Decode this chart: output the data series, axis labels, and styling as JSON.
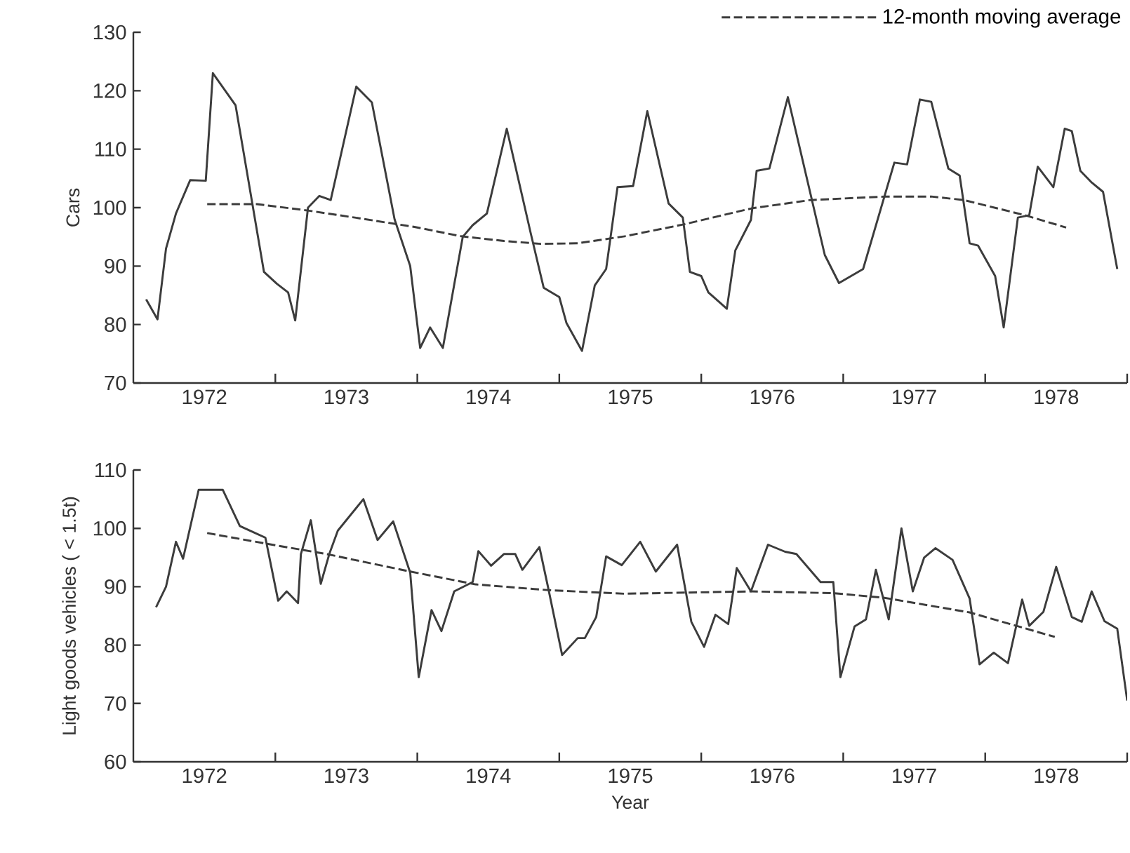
{
  "chart_data": [
    {
      "type": "line",
      "ylabel": "Cars",
      "xlim": [
        1972,
        1979
      ],
      "ylim": [
        70,
        130
      ],
      "xticks": [
        {
          "value": 1972.5,
          "label": "1972"
        },
        {
          "value": 1973,
          "label": null
        },
        {
          "value": 1973.5,
          "label": "1973"
        },
        {
          "value": 1974,
          "label": null
        },
        {
          "value": 1974.5,
          "label": "1974"
        },
        {
          "value": 1975,
          "label": null
        },
        {
          "value": 1975.5,
          "label": "1975"
        },
        {
          "value": 1976,
          "label": null
        },
        {
          "value": 1976.5,
          "label": "1976"
        },
        {
          "value": 1977,
          "label": null
        },
        {
          "value": 1977.5,
          "label": "1977"
        },
        {
          "value": 1978,
          "label": null
        },
        {
          "value": 1978.5,
          "label": "1978"
        },
        {
          "value": 1979,
          "label": null
        }
      ],
      "yticks": [
        70,
        80,
        90,
        100,
        110,
        120,
        130
      ],
      "legend": "top right",
      "marker": "none",
      "series": [
        {
          "color": "#3c3c3c",
          "line_style": "solid",
          "x": [
            1972.09,
            1972.17,
            1972.23,
            1972.3,
            1972.4,
            1972.51,
            1972.56,
            1972.72,
            1972.92,
            1973.01,
            1973.09,
            1973.14,
            1973.23,
            1973.31,
            1973.39,
            1973.57,
            1973.68,
            1973.84,
            1973.95,
            1974.02,
            1974.09,
            1974.18,
            1974.32,
            1974.39,
            1974.49,
            1974.63,
            1974.8,
            1974.89,
            1975.0,
            1975.05,
            1975.16,
            1975.25,
            1975.33,
            1975.41,
            1975.52,
            1975.62,
            1975.77,
            1975.87,
            1975.92,
            1976.0,
            1976.05,
            1976.18,
            1976.24,
            1976.35,
            1976.39,
            1976.48,
            1976.61,
            1976.87,
            1976.97,
            1977.14,
            1977.36,
            1977.45,
            1977.54,
            1977.62,
            1977.74,
            1977.82,
            1977.89,
            1977.95,
            1978.07,
            1978.13,
            1978.23,
            1978.31,
            1978.37,
            1978.48,
            1978.56,
            1978.61,
            1978.67,
            1978.75,
            1978.83,
            1978.93
          ],
          "values": [
            84.3,
            80.9,
            93,
            99,
            104.7,
            104.6,
            123,
            117.5,
            89,
            87,
            85.5,
            80.7,
            100,
            102,
            101.3,
            120.7,
            118,
            98,
            90,
            76,
            79.5,
            76,
            95,
            97,
            99,
            113.5,
            95.5,
            86.3,
            84.7,
            80.3,
            75.5,
            86.7,
            89.5,
            103.5,
            103.7,
            116.5,
            100.7,
            98.3,
            89,
            88.3,
            85.5,
            82.7,
            92.7,
            97.9,
            106.3,
            106.7,
            118.9,
            91.9,
            87.1,
            89.5,
            107.7,
            107.4,
            118.5,
            118.1,
            106.7,
            105.5,
            93.9,
            93.5,
            88.3,
            79.5,
            98.3,
            98.7,
            107,
            103.5,
            113.5,
            113.1,
            106.3,
            104.3,
            102.7,
            89.5
          ]
        },
        {
          "name": "12-month moving average",
          "color": "#3c3c3c",
          "line_style": "dashed",
          "x": [
            1972.52,
            1972.87,
            1973.23,
            1973.56,
            1973.98,
            1974.31,
            1974.61,
            1974.87,
            1975.13,
            1975.46,
            1975.87,
            1976.36,
            1976.77,
            1977.3,
            1977.62,
            1977.85,
            1978.28,
            1978.57
          ],
          "values": [
            100.6,
            100.6,
            99.5,
            98.3,
            96.7,
            95.1,
            94.3,
            93.8,
            93.9,
            95.1,
            97.1,
            99.9,
            101.3,
            101.9,
            101.9,
            101.3,
            98.7,
            96.6
          ]
        }
      ]
    },
    {
      "type": "line",
      "ylabel": "Light goods vehicles ( < 1.5t)",
      "xlabel": "Year",
      "xlim": [
        1972,
        1979
      ],
      "ylim": [
        60,
        110
      ],
      "xticks": [
        {
          "value": 1972.5,
          "label": "1972"
        },
        {
          "value": 1973,
          "label": null
        },
        {
          "value": 1973.5,
          "label": "1973"
        },
        {
          "value": 1974,
          "label": null
        },
        {
          "value": 1974.5,
          "label": "1974"
        },
        {
          "value": 1975,
          "label": null
        },
        {
          "value": 1975.5,
          "label": "1975"
        },
        {
          "value": 1976,
          "label": null
        },
        {
          "value": 1976.5,
          "label": "1976"
        },
        {
          "value": 1977,
          "label": null
        },
        {
          "value": 1977.5,
          "label": "1977"
        },
        {
          "value": 1978,
          "label": null
        },
        {
          "value": 1978.5,
          "label": "1978"
        },
        {
          "value": 1979,
          "label": null
        }
      ],
      "yticks": [
        60,
        70,
        80,
        90,
        100,
        110
      ],
      "marker": "none",
      "series": [
        {
          "color": "#3c3c3c",
          "line_style": "solid",
          "x": [
            1972.16,
            1972.23,
            1972.3,
            1972.35,
            1972.46,
            1972.54,
            1972.63,
            1972.75,
            1972.93,
            1973.02,
            1973.08,
            1973.16,
            1973.18,
            1973.25,
            1973.32,
            1973.38,
            1973.44,
            1973.62,
            1973.72,
            1973.83,
            1973.95,
            1974.01,
            1974.1,
            1974.17,
            1974.26,
            1974.39,
            1974.43,
            1974.52,
            1974.61,
            1974.69,
            1974.74,
            1974.86,
            1974.92,
            1975.02,
            1975.13,
            1975.18,
            1975.26,
            1975.33,
            1975.44,
            1975.57,
            1975.68,
            1975.83,
            1975.93,
            1976.02,
            1976.1,
            1976.19,
            1976.25,
            1976.35,
            1976.47,
            1976.59,
            1976.67,
            1976.84,
            1976.93,
            1976.98,
            1977.08,
            1977.16,
            1977.23,
            1977.32,
            1977.41,
            1977.49,
            1977.57,
            1977.65,
            1977.77,
            1977.89,
            1977.96,
            1978.06,
            1978.16,
            1978.26,
            1978.31,
            1978.41,
            1978.5,
            1978.61,
            1978.68,
            1978.75,
            1978.84,
            1978.93,
            1979.0
          ],
          "values": [
            86.5,
            90,
            97.7,
            94.8,
            106.6,
            106.6,
            106.6,
            100.4,
            98.4,
            87.6,
            89.2,
            87.2,
            95.6,
            101.4,
            90.5,
            95.6,
            99.6,
            105,
            98,
            101.2,
            92.4,
            74.5,
            86,
            82.4,
            89.2,
            90.8,
            96.1,
            93.6,
            95.6,
            95.6,
            92.9,
            96.8,
            90,
            78.3,
            81.2,
            81.2,
            84.8,
            95.2,
            93.7,
            97.7,
            92.6,
            97.2,
            84,
            79.7,
            85.2,
            83.6,
            93.2,
            89.2,
            97.2,
            96,
            95.6,
            90.8,
            90.8,
            74.5,
            83.2,
            84.4,
            92.9,
            84.4,
            100,
            89.2,
            95,
            96.6,
            94.6,
            88,
            76.7,
            78.7,
            76.9,
            87.8,
            83.3,
            85.7,
            93.4,
            84.8,
            84,
            89.2,
            84.1,
            82.8,
            70.5
          ]
        },
        {
          "color": "#3c3c3c",
          "line_style": "dashed",
          "x": [
            1972.52,
            1972.93,
            1973.36,
            1973.95,
            1974.41,
            1974.93,
            1975.46,
            1976.35,
            1976.93,
            1977.29,
            1977.89,
            1978.49
          ],
          "values": [
            99.2,
            97.4,
            95.6,
            92.6,
            90.4,
            89.4,
            88.8,
            89.2,
            88.9,
            88.1,
            85.6,
            81.4
          ]
        }
      ]
    }
  ]
}
